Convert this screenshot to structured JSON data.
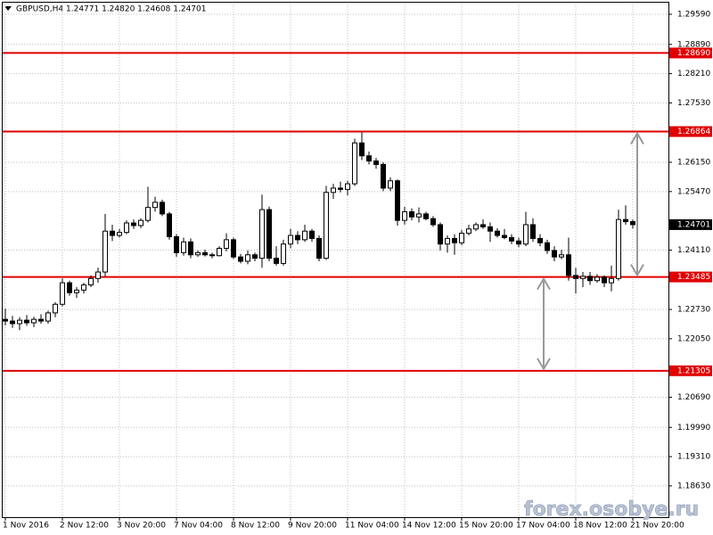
{
  "chart_data": {
    "type": "candlestick",
    "title": "GBPUSD,H4  1.24771 1.24820 1.24608 1.24701",
    "watermark": "forex.osobye.ru",
    "categories": [
      "1 Nov 2016",
      null,
      null,
      null,
      null,
      null,
      null,
      null,
      "2 Nov 12:00",
      null,
      null,
      null,
      null,
      null,
      null,
      null,
      "3 Nov 20:00",
      null,
      null,
      null,
      null,
      null,
      null,
      null,
      "7 Nov 04:00",
      null,
      null,
      null,
      null,
      null,
      null,
      null,
      "8 Nov 12:00",
      null,
      null,
      null,
      null,
      null,
      null,
      null,
      "9 Nov 20:00",
      null,
      null,
      null,
      null,
      null,
      null,
      null,
      "11 Nov 04:00",
      null,
      null,
      null,
      null,
      null,
      null,
      null,
      "14 Nov 12:00",
      null,
      null,
      null,
      null,
      null,
      null,
      null,
      "15 Nov 20:00",
      null,
      null,
      null,
      null,
      null,
      null,
      null,
      "17 Nov 04:00",
      null,
      null,
      null,
      null,
      null,
      null,
      null,
      "18 Nov 12:00",
      null,
      null,
      null,
      null,
      null,
      null,
      null,
      "21 Nov 20:00"
    ],
    "open": [
      1.225,
      1.2246,
      1.224,
      1.2248,
      1.2242,
      1.225,
      1.2246,
      1.2265,
      1.2285,
      1.2335,
      1.2312,
      1.2318,
      1.233,
      1.2345,
      1.236,
      1.2455,
      1.2445,
      1.2452,
      1.2474,
      1.2468,
      1.248,
      1.251,
      1.2522,
      1.2495,
      1.2442,
      1.2405,
      1.243,
      1.24,
      1.2405,
      1.24,
      1.2398,
      1.2415,
      1.2435,
      1.2395,
      1.2385,
      1.24,
      1.2392,
      1.2505,
      1.2392,
      1.238,
      1.2425,
      1.2445,
      1.2435,
      1.2455,
      1.2438,
      1.2392,
      1.2545,
      1.2555,
      1.2552,
      1.2565,
      1.266,
      1.263,
      1.2618,
      1.261,
      1.2555,
      1.2572,
      1.248,
      1.25,
      1.2488,
      1.2495,
      1.2484,
      1.247,
      1.2425,
      1.2438,
      1.2428,
      1.245,
      1.246,
      1.247,
      1.2465,
      1.2455,
      1.2445,
      1.244,
      1.2432,
      1.2425,
      1.247,
      1.2438,
      1.2428,
      1.241,
      1.2395,
      1.24,
      1.2352,
      1.2345,
      1.235,
      1.234,
      1.2348,
      1.2335,
      1.2345,
      1.2482,
      1.24771
    ],
    "high": [
      1.2275,
      1.2258,
      1.2255,
      1.226,
      1.2256,
      1.2262,
      1.227,
      1.229,
      1.2345,
      1.234,
      1.2325,
      1.2335,
      1.2352,
      1.237,
      1.2495,
      1.247,
      1.246,
      1.248,
      1.2482,
      1.2485,
      1.2558,
      1.2535,
      1.2528,
      1.25,
      1.2448,
      1.244,
      1.2438,
      1.241,
      1.2412,
      1.2405,
      1.242,
      1.245,
      1.244,
      1.2402,
      1.241,
      1.2405,
      1.254,
      1.2512,
      1.242,
      1.2435,
      1.246,
      1.2455,
      1.247,
      1.246,
      1.2445,
      1.256,
      1.2565,
      1.257,
      1.2572,
      1.267,
      1.2685,
      1.264,
      1.2625,
      1.2615,
      1.258,
      1.2575,
      1.2512,
      1.2508,
      1.251,
      1.25,
      1.249,
      1.2475,
      1.2445,
      1.2448,
      1.2458,
      1.247,
      1.2475,
      1.2482,
      1.2475,
      1.2462,
      1.246,
      1.2448,
      1.244,
      1.25,
      1.2485,
      1.2448,
      1.2435,
      1.242,
      1.2412,
      1.244,
      1.237,
      1.236,
      1.236,
      1.2355,
      1.2352,
      1.2375,
      1.2505,
      1.2515,
      1.2482
    ],
    "low": [
      1.2236,
      1.223,
      1.2225,
      1.2235,
      1.2232,
      1.224,
      1.224,
      1.2255,
      1.228,
      1.2305,
      1.23,
      1.231,
      1.2325,
      1.2335,
      1.235,
      1.2432,
      1.244,
      1.2448,
      1.246,
      1.2462,
      1.2475,
      1.25,
      1.249,
      1.2435,
      1.2395,
      1.2398,
      1.2392,
      1.2395,
      1.2396,
      1.2392,
      1.2396,
      1.2408,
      1.239,
      1.238,
      1.2378,
      1.2385,
      1.237,
      1.2385,
      1.2375,
      1.2375,
      1.2415,
      1.2425,
      1.243,
      1.243,
      1.2385,
      1.2388,
      1.253,
      1.2545,
      1.2538,
      1.256,
      1.262,
      1.261,
      1.26,
      1.2548,
      1.2548,
      1.2468,
      1.247,
      1.248,
      1.2475,
      1.248,
      1.2465,
      1.241,
      1.2405,
      1.24,
      1.2422,
      1.2445,
      1.2455,
      1.246,
      1.243,
      1.244,
      1.2436,
      1.2425,
      1.2418,
      1.242,
      1.243,
      1.242,
      1.2402,
      1.2385,
      1.239,
      1.234,
      1.231,
      1.2325,
      1.233,
      1.2335,
      1.2325,
      1.2315,
      1.234,
      1.247,
      1.24608
    ],
    "close": [
      1.2246,
      1.224,
      1.2248,
      1.2242,
      1.225,
      1.2246,
      1.2265,
      1.2285,
      1.2335,
      1.2312,
      1.2318,
      1.233,
      1.2345,
      1.236,
      1.2455,
      1.2445,
      1.2452,
      1.2474,
      1.2468,
      1.248,
      1.251,
      1.2522,
      1.2495,
      1.2442,
      1.2405,
      1.243,
      1.24,
      1.2405,
      1.24,
      1.2398,
      1.2415,
      1.2435,
      1.2395,
      1.2385,
      1.24,
      1.2392,
      1.2505,
      1.2392,
      1.238,
      1.2425,
      1.2445,
      1.2435,
      1.2455,
      1.2438,
      1.2392,
      1.2545,
      1.2555,
      1.2552,
      1.2565,
      1.266,
      1.263,
      1.2618,
      1.261,
      1.2555,
      1.2572,
      1.248,
      1.25,
      1.2488,
      1.2495,
      1.2484,
      1.247,
      1.2425,
      1.2438,
      1.2428,
      1.245,
      1.246,
      1.247,
      1.2465,
      1.2455,
      1.2445,
      1.244,
      1.2432,
      1.2425,
      1.247,
      1.2438,
      1.2428,
      1.241,
      1.2395,
      1.24,
      1.2352,
      1.2345,
      1.235,
      1.234,
      1.2348,
      1.2335,
      1.2345,
      1.2482,
      1.2477,
      1.24701
    ],
    "up_color": "#ffffff",
    "down_color": "#000000",
    "levels": [
      {
        "value": 1.2869,
        "label": "1.28690"
      },
      {
        "value": 1.26864,
        "label": "1.26864"
      },
      {
        "value": 1.23485,
        "label": "1.23485"
      },
      {
        "value": 1.21305,
        "label": "1.21305"
      }
    ],
    "level_color": "#e00000",
    "ylim": [
      1.17903,
      1.29859
    ],
    "yticks": [
      {
        "value": 1.2959,
        "label": "1.29590"
      },
      {
        "value": 1.2889,
        "label": "1.28890"
      },
      {
        "value": 1.2821,
        "label": "1.28210"
      },
      {
        "value": 1.2753,
        "label": "1.27530"
      },
      {
        "value": 1.2615,
        "label": "1.26150"
      },
      {
        "value": 1.2547,
        "label": "1.25470"
      },
      {
        "value": 1.2411,
        "label": "1.24110"
      },
      {
        "value": 1.2273,
        "label": "1.22730"
      },
      {
        "value": 1.2205,
        "label": "1.22050"
      },
      {
        "value": 1.2069,
        "label": "1.20690"
      },
      {
        "value": 1.1999,
        "label": "1.19990"
      },
      {
        "value": 1.1931,
        "label": "1.19310"
      },
      {
        "value": 1.1863,
        "label": "1.18630"
      }
    ],
    "grid": true
  }
}
